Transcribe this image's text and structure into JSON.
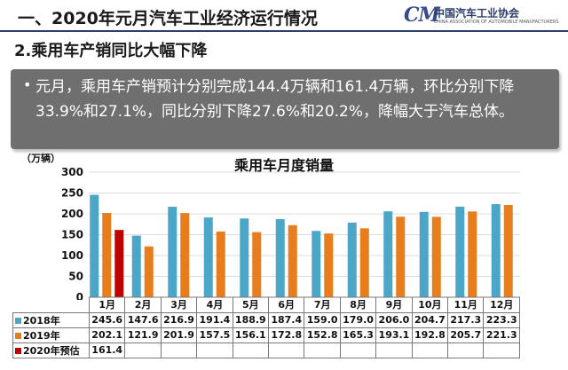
{
  "header": {
    "title": "一、2020年元月汽车工业经济运行情况",
    "logo_text": "中国汽车工业协会",
    "logo_subtext": "CHINA ASSOCIATION OF AUTOMOBILE MANUFACTURERS",
    "logo_mark": "CM"
  },
  "subtitle": "2.乘用车产销同比大幅下降",
  "summary": {
    "bullet": "•",
    "text": "元月，乘用车产销预计分别完成144.4万辆和161.4万辆，环比分别下降33.9%和27.1%，同比分别下降27.6%和20.2%，降幅大于汽车总体。"
  },
  "colors": {
    "s2018": "#4ba6c7",
    "s2019": "#e87d1e",
    "s2020": "#c00000"
  },
  "chart_data": {
    "type": "bar",
    "title": "乘用车月度销量",
    "ylabel": "（万辆）",
    "ylim": [
      0,
      300
    ],
    "yticks": [
      "0",
      "50",
      "100",
      "150",
      "200",
      "250",
      "300"
    ],
    "categories": [
      "1月",
      "2月",
      "3月",
      "4月",
      "5月",
      "6月",
      "7月",
      "8月",
      "9月",
      "10月",
      "11月",
      "12月"
    ],
    "series": [
      {
        "name": "2018年",
        "values": [
          245.6,
          147.6,
          216.9,
          191.4,
          188.9,
          187.4,
          159.0,
          179.0,
          206.0,
          204.7,
          217.3,
          223.3
        ]
      },
      {
        "name": "2019年",
        "values": [
          202.1,
          121.9,
          201.9,
          157.5,
          156.1,
          172.8,
          152.8,
          165.3,
          193.1,
          192.8,
          205.7,
          221.3
        ]
      },
      {
        "name": "2020年预估",
        "values": [
          161.4,
          null,
          null,
          null,
          null,
          null,
          null,
          null,
          null,
          null,
          null,
          null
        ]
      }
    ],
    "table": {
      "s2018": [
        "245.6",
        "147.6",
        "216.9",
        "191.4",
        "188.9",
        "187.4",
        "159.0",
        "179.0",
        "206.0",
        "204.7",
        "217.3",
        "223.3"
      ],
      "s2019": [
        "202.1",
        "121.9",
        "201.9",
        "157.5",
        "156.1",
        "172.8",
        "152.8",
        "165.3",
        "193.1",
        "192.8",
        "205.7",
        "221.3"
      ],
      "s2020": [
        "161.4"
      ]
    }
  }
}
